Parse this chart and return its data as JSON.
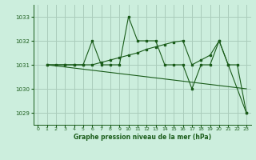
{
  "background_color": "#cceedd",
  "grid_color": "#aaccbb",
  "line_color": "#1a5c1a",
  "title": "Graphe pression niveau de la mer (hPa)",
  "xlim": [
    -0.5,
    23.5
  ],
  "ylim": [
    1028.5,
    1033.5
  ],
  "yticks": [
    1029,
    1030,
    1031,
    1032,
    1033
  ],
  "xticks": [
    0,
    1,
    2,
    3,
    4,
    5,
    6,
    7,
    8,
    9,
    10,
    11,
    12,
    13,
    14,
    15,
    16,
    17,
    18,
    19,
    20,
    21,
    22,
    23
  ],
  "series": [
    {
      "x": [
        1,
        2,
        3,
        4,
        5,
        6,
        7,
        8,
        9,
        10,
        11,
        12,
        13,
        14,
        15,
        16,
        17,
        18,
        19,
        20,
        21,
        22,
        23
      ],
      "y": [
        1031,
        1031,
        1031,
        1031,
        1031,
        1032,
        1031,
        1031,
        1031,
        1033,
        1032,
        1032,
        1032,
        1031,
        1031,
        1031,
        1030,
        1031,
        1031,
        1032,
        1031,
        1031,
        1029
      ]
    },
    {
      "x": [
        1,
        3,
        4,
        5,
        6,
        7,
        8,
        9,
        10,
        11,
        12,
        13,
        14,
        15,
        16,
        17,
        18,
        19,
        20,
        21,
        23
      ],
      "y": [
        1031,
        1031,
        1031,
        1031,
        1031,
        1031.1,
        1031.2,
        1031.3,
        1031.4,
        1031.5,
        1031.65,
        1031.75,
        1031.85,
        1031.95,
        1032.0,
        1031.0,
        1031.2,
        1031.4,
        1032.0,
        1031.0,
        1029.0
      ]
    },
    {
      "x": [
        1,
        23
      ],
      "y": [
        1031,
        1030.0
      ]
    }
  ],
  "marker_series": [
    0,
    1
  ],
  "no_marker_series": [
    2
  ]
}
